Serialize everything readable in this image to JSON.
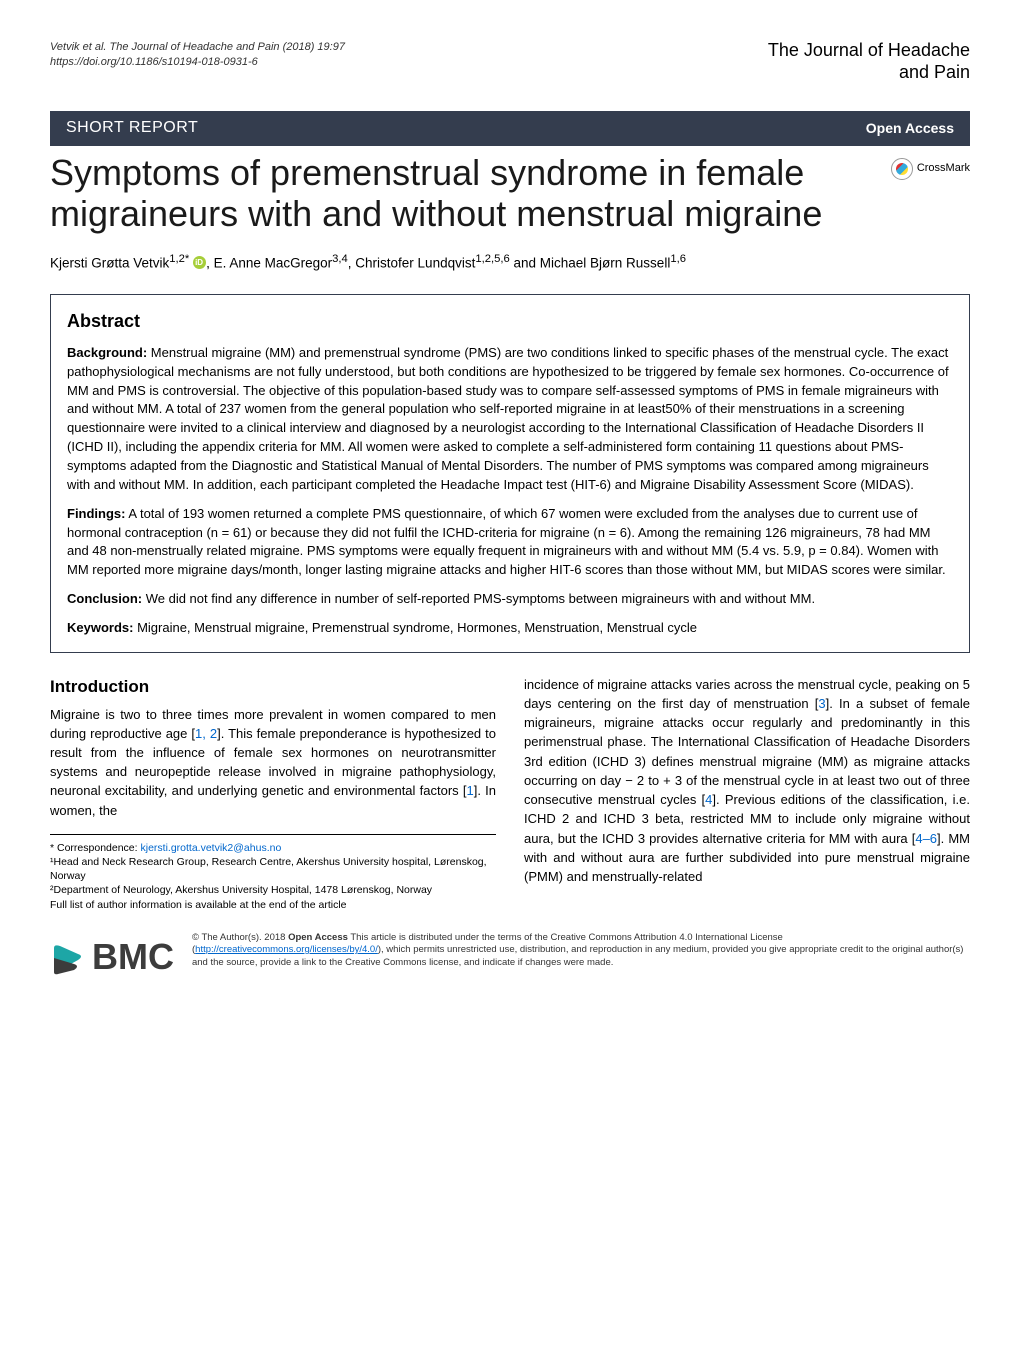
{
  "header": {
    "citation_line1": "Vetvik et al. The Journal of Headache and Pain  (2018) 19:97",
    "citation_line2": "https://doi.org/10.1186/s10194-018-0931-6",
    "journal_line1": "The Journal of Headache",
    "journal_line2": "and Pain"
  },
  "section_bar": {
    "label": "SHORT REPORT",
    "open_access": "Open Access"
  },
  "crossmark_label": "CrossMark",
  "title": "Symptoms of premenstrual syndrome in female migraineurs with and without menstrual migraine",
  "authors_html": "Kjersti Grøtta Vetvik<sup>1,2*</sup> {ORCID}, E. Anne MacGregor<sup>3,4</sup>, Christofer Lundqvist<sup>1,2,5,6</sup> and Michael Bjørn Russell<sup>1,6</sup>",
  "abstract": {
    "heading": "Abstract",
    "background_label": "Background:",
    "background_text": " Menstrual migraine (MM) and premenstrual syndrome (PMS) are two conditions linked to specific phases of the menstrual cycle. The exact pathophysiological mechanisms are not fully understood, but both conditions are hypothesized to be triggered by female sex hormones. Co-occurrence of MM and PMS is controversial. The objective of this population-based study was to compare self-assessed symptoms of PMS in female migraineurs with and without MM. A total of 237 women from the general population who self-reported migraine in at least50% of their menstruations in a screening questionnaire were invited to a clinical interview and diagnosed by a neurologist according to the International Classification of Headache Disorders II (ICHD II), including the appendix criteria for MM. All women were asked to complete a self-administered form containing 11 questions about PMS-symptoms adapted from the Diagnostic and Statistical Manual of Mental Disorders. The number of PMS symptoms was compared among migraineurs with and without MM. In addition, each participant completed the Headache Impact test (HIT-6) and Migraine Disability Assessment Score (MIDAS).",
    "findings_label": "Findings:",
    "findings_text": " A total of 193 women returned a complete PMS questionnaire, of which 67 women were excluded from the analyses due to current use of hormonal contraception (n = 61) or because they did not fulfil the ICHD-criteria for migraine (n = 6). Among the remaining 126 migraineurs, 78 had MM and 48 non-menstrually related migraine. PMS symptoms were equally frequent in migraineurs with and without MM (5.4 vs. 5.9, p = 0.84). Women with MM reported more migraine days/month, longer lasting migraine attacks and higher HIT-6 scores than those without MM, but MIDAS scores were similar.",
    "conclusion_label": "Conclusion:",
    "conclusion_text": " We did not find any difference in number of self-reported PMS-symptoms between migraineurs with and without MM.",
    "keywords_label": "Keywords:",
    "keywords_text": " Migraine, Menstrual migraine, Premenstrual syndrome, Hormones, Menstruation, Menstrual cycle"
  },
  "body": {
    "intro_heading": "Introduction",
    "intro_left": "Migraine is two to three times more prevalent in women compared to men during reproductive age [1, 2]. This female preponderance is hypothesized to result from the influence of female sex hormones on neurotransmitter systems and neuropeptide release involved in migraine pathophysiology, neuronal excitability, and underlying genetic and environmental factors [1]. In women, the",
    "intro_right": "incidence of migraine attacks varies across the menstrual cycle, peaking on 5 days centering on the first day of menstruation [3]. In a subset of female migraineurs, migraine attacks occur regularly and predominantly in this perimenstrual phase. The International Classification of Headache Disorders 3rd edition (ICHD 3) defines menstrual migraine (MM) as migraine attacks occurring on day − 2 to + 3 of the menstrual cycle in at least two out of three consecutive menstrual cycles [4]. Previous editions of the classification, i.e. ICHD 2 and ICHD 3 beta, restricted MM to include only migraine without aura, but the ICHD 3 provides alternative criteria for MM with aura [4–6]. MM with and without aura are further subdivided into pure menstrual migraine (PMM) and menstrually-related"
  },
  "footnotes": {
    "correspondence_label": "* Correspondence: ",
    "correspondence_email": "kjersti.grotta.vetvik2@ahus.no",
    "affil1": "¹Head and Neck Research Group, Research Centre, Akershus University hospital, Lørenskog, Norway",
    "affil2": "²Department of Neurology, Akershus University Hospital, 1478 Lørenskog, Norway",
    "full_list": "Full list of author information is available at the end of the article"
  },
  "footer": {
    "bmc": "BMC",
    "license": "© The Author(s). 2018 Open Access This article is distributed under the terms of the Creative Commons Attribution 4.0 International License (http://creativecommons.org/licenses/by/4.0/), which permits unrestricted use, distribution, and reproduction in any medium, provided you give appropriate credit to the original author(s) and the source, provide a link to the Creative Commons license, and indicate if changes were made."
  },
  "colors": {
    "bar_bg": "#343d4e",
    "link": "#0066cc",
    "bmc_teal": "#1da6a6"
  }
}
